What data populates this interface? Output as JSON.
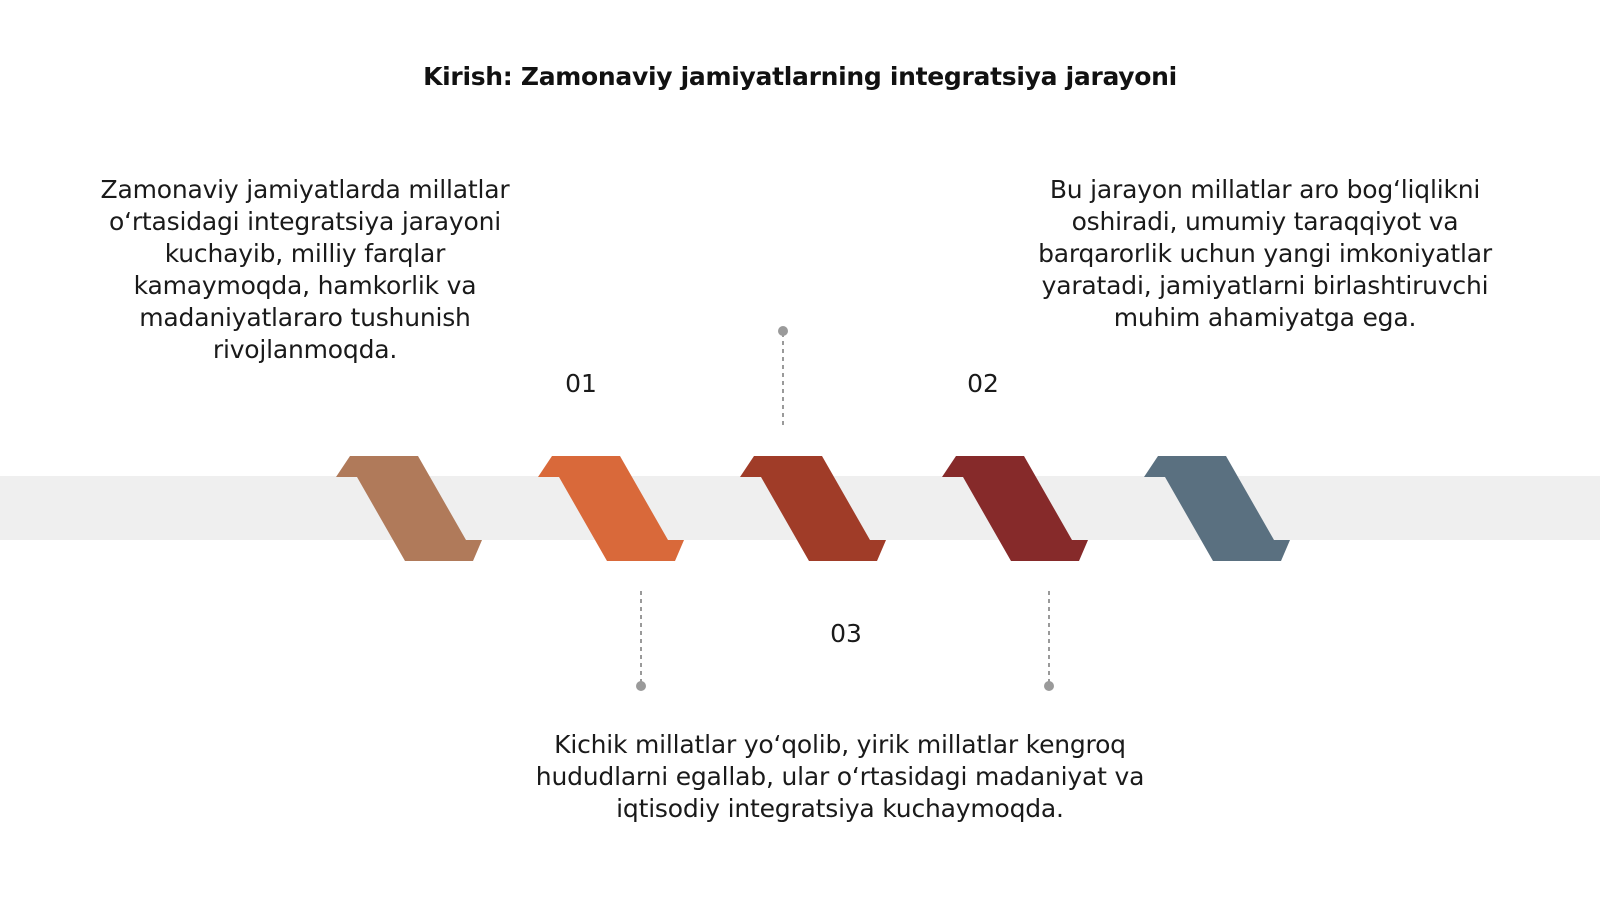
{
  "slide": {
    "title": "Kirish: Zamonaviy jamiyatlarning integratsiya jarayoni"
  },
  "steps": [
    {
      "number": "01",
      "text": "Zamonaviy jamiyatlarda millatlar o‘rtasidagi integratsiya jarayoni kuchayib, milliy farqlar kamaymoqda, hamkorlik va madaniyatlararo tushunish rivojlanmoqda."
    },
    {
      "number": "02",
      "text": "Bu jarayon millatlar aro bog‘liqlikni oshiradi, umumiy taraqqiyot va barqarorlik uchun yangi imkoniyatlar yaratadi, jamiyatlarni birlashtiruvchi muhim ahamiyatga ega."
    },
    {
      "number": "03",
      "text": "Kichik millatlar yo‘qolib, yirik millatlar kengroq hududlarni egallab, ular o‘rtasidagi madaniyat va iqtisodiy integratsiya kuchaymoqda."
    }
  ],
  "colors": {
    "band": "#efefef",
    "connector": "#9a9a9a",
    "arrows": [
      "#b07a5a",
      "#d9693a",
      "#a03c28",
      "#862a2a",
      "#5a7080"
    ]
  }
}
